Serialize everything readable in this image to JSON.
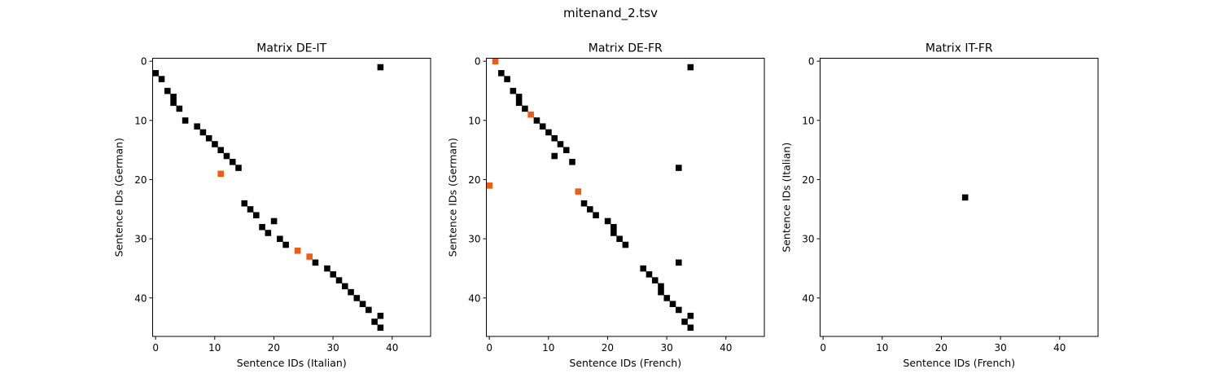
{
  "figure": {
    "title": "mitenand_2.tsv"
  },
  "colors": {
    "black_cell": "#000000",
    "orange_cell": "#f25b0f",
    "frame": "#000000",
    "background": "#ffffff"
  },
  "chart_data": [
    {
      "type": "heatmap",
      "title": "Matrix DE-IT",
      "xlabel": "Sentence IDs (Italian)",
      "ylabel": "Sentence IDs (German)",
      "xlim": [
        -0.5,
        46.5
      ],
      "ylim": [
        46.5,
        -0.5
      ],
      "xticks": [
        0,
        10,
        20,
        30,
        40
      ],
      "yticks": [
        0,
        10,
        20,
        30,
        40
      ],
      "grid": false,
      "cells_black": [
        [
          38,
          1
        ],
        [
          0,
          2
        ],
        [
          1,
          3
        ],
        [
          2,
          5
        ],
        [
          3,
          6
        ],
        [
          3,
          7
        ],
        [
          4,
          8
        ],
        [
          5,
          10
        ],
        [
          7,
          11
        ],
        [
          8,
          12
        ],
        [
          9,
          13
        ],
        [
          10,
          14
        ],
        [
          11,
          15
        ],
        [
          12,
          16
        ],
        [
          13,
          17
        ],
        [
          14,
          18
        ],
        [
          15,
          24
        ],
        [
          16,
          25
        ],
        [
          17,
          26
        ],
        [
          20,
          27
        ],
        [
          18,
          28
        ],
        [
          19,
          29
        ],
        [
          21,
          30
        ],
        [
          22,
          31
        ],
        [
          27,
          34
        ],
        [
          29,
          35
        ],
        [
          30,
          36
        ],
        [
          31,
          37
        ],
        [
          32,
          38
        ],
        [
          33,
          39
        ],
        [
          34,
          40
        ],
        [
          35,
          41
        ],
        [
          36,
          42
        ],
        [
          38,
          43
        ],
        [
          37,
          44
        ],
        [
          38,
          45
        ]
      ],
      "cells_orange": [
        [
          11,
          19
        ],
        [
          24,
          32
        ],
        [
          26,
          33
        ]
      ]
    },
    {
      "type": "heatmap",
      "title": "Matrix DE-FR",
      "xlabel": "Sentence IDs (French)",
      "ylabel": "Sentence IDs (German)",
      "xlim": [
        -0.5,
        46.5
      ],
      "ylim": [
        46.5,
        -0.5
      ],
      "xticks": [
        0,
        10,
        20,
        30,
        40
      ],
      "yticks": [
        0,
        10,
        20,
        30,
        40
      ],
      "grid": false,
      "cells_black": [
        [
          34,
          1
        ],
        [
          2,
          2
        ],
        [
          3,
          3
        ],
        [
          4,
          5
        ],
        [
          5,
          6
        ],
        [
          5,
          7
        ],
        [
          6,
          8
        ],
        [
          8,
          10
        ],
        [
          9,
          11
        ],
        [
          10,
          12
        ],
        [
          11,
          13
        ],
        [
          12,
          14
        ],
        [
          13,
          15
        ],
        [
          11,
          16
        ],
        [
          14,
          17
        ],
        [
          32,
          18
        ],
        [
          16,
          24
        ],
        [
          17,
          25
        ],
        [
          18,
          26
        ],
        [
          20,
          27
        ],
        [
          21,
          28
        ],
        [
          21,
          29
        ],
        [
          22,
          30
        ],
        [
          23,
          31
        ],
        [
          32,
          34
        ],
        [
          26,
          35
        ],
        [
          27,
          36
        ],
        [
          28,
          37
        ],
        [
          29,
          38
        ],
        [
          29,
          39
        ],
        [
          30,
          40
        ],
        [
          31,
          41
        ],
        [
          32,
          42
        ],
        [
          34,
          43
        ],
        [
          33,
          44
        ],
        [
          34,
          45
        ]
      ],
      "cells_orange": [
        [
          1,
          0
        ],
        [
          7,
          9
        ],
        [
          0,
          21
        ],
        [
          15,
          22
        ]
      ]
    },
    {
      "type": "heatmap",
      "title": "Matrix IT-FR",
      "xlabel": "Sentence IDs (French)",
      "ylabel": "Sentence IDs (Italian)",
      "xlim": [
        -0.5,
        46.5
      ],
      "ylim": [
        46.5,
        -0.5
      ],
      "xticks": [
        0,
        10,
        20,
        30,
        40
      ],
      "yticks": [
        0,
        10,
        20,
        30,
        40
      ],
      "grid": false,
      "cells_black": [
        [
          24,
          23
        ]
      ],
      "cells_orange": []
    }
  ]
}
